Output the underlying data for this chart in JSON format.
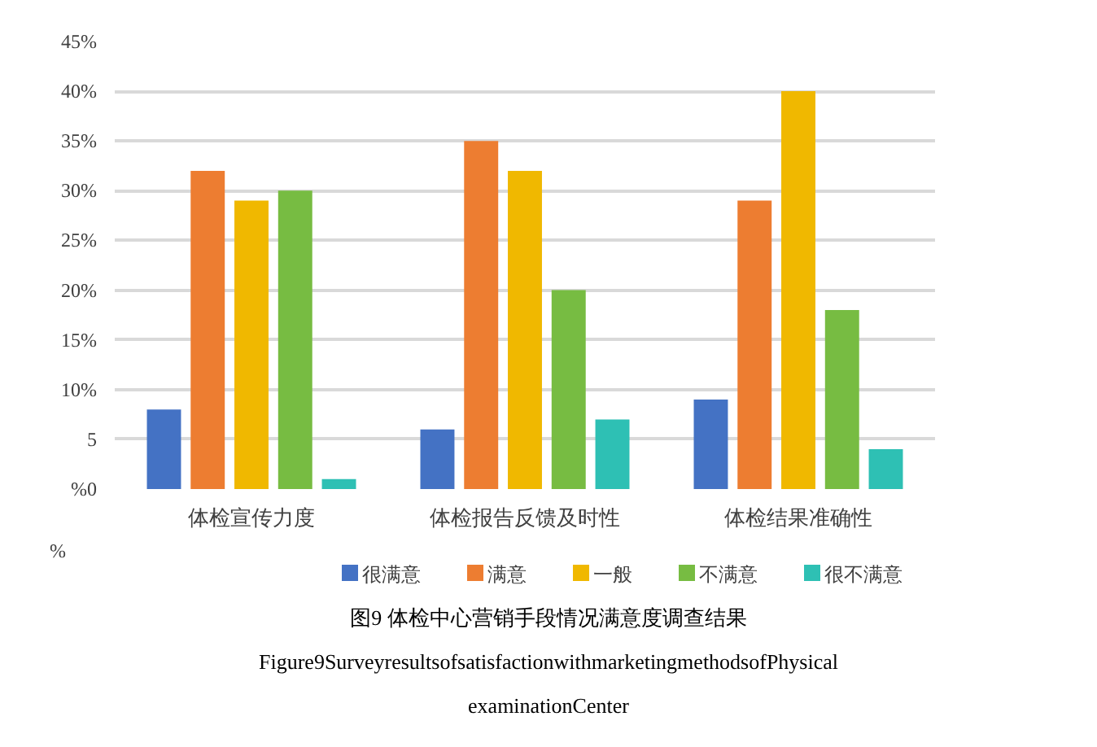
{
  "chart_data": {
    "type": "bar",
    "categories": [
      "体检宣传力度",
      "体检报告反馈及时性",
      "体检结果准确性"
    ],
    "series": [
      {
        "name": "很满意",
        "color": "#4472c4",
        "values": [
          8,
          6,
          9
        ]
      },
      {
        "name": "满意",
        "color": "#ed7d31",
        "values": [
          32,
          35,
          29
        ]
      },
      {
        "name": "一般",
        "color": "#f0b800",
        "values": [
          29,
          32,
          40
        ]
      },
      {
        "name": "不满意",
        "color": "#77bc42",
        "values": [
          30,
          20,
          18
        ]
      },
      {
        "name": "很不满意",
        "color": "#2ec0b4",
        "values": [
          1,
          7,
          4
        ]
      }
    ],
    "ylim": [
      0,
      45
    ],
    "yticks": [
      {
        "value": 0,
        "label": "%0"
      },
      {
        "value": 5,
        "label": "5"
      },
      {
        "value": 10,
        "label": "10%"
      },
      {
        "value": 15,
        "label": "15%"
      },
      {
        "value": 20,
        "label": "20%"
      },
      {
        "value": 25,
        "label": "25%"
      },
      {
        "value": 30,
        "label": "30%"
      },
      {
        "value": 35,
        "label": "35%"
      },
      {
        "value": 40,
        "label": "40%"
      },
      {
        "value": 45,
        "label": "45%"
      }
    ],
    "grid": "y",
    "legend": "bottom",
    "annotations": [
      "%",
      "图9 体检中心营销手段情况满意度调查结果",
      "Figure9SurveyresultsofsatisfactionwithmarketingmethodsofPhysical",
      "examinationCenter"
    ]
  }
}
